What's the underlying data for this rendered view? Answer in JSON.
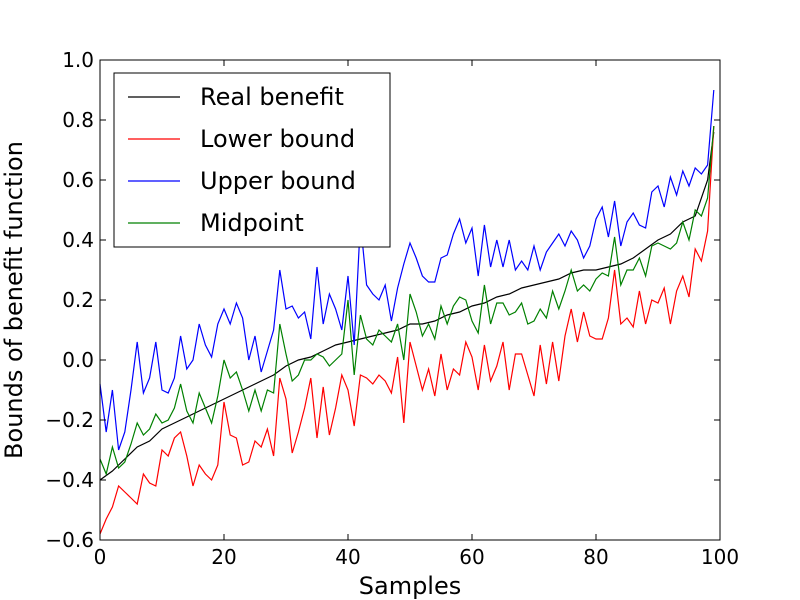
{
  "chart_data": {
    "type": "line",
    "title": "",
    "xlabel": "Samples",
    "ylabel": "Bounds of benefit function",
    "xlim": [
      0,
      100
    ],
    "ylim": [
      -0.6,
      1.0
    ],
    "xticks": [
      0,
      20,
      40,
      60,
      80,
      100
    ],
    "xtick_labels": [
      "0",
      "20",
      "40",
      "60",
      "80",
      "100"
    ],
    "yticks": [
      -0.6,
      -0.4,
      -0.2,
      0.0,
      0.2,
      0.4,
      0.6,
      0.8,
      1.0
    ],
    "ytick_labels": [
      "−0.6",
      "−0.4",
      "−0.2",
      "0.0",
      "0.2",
      "0.4",
      "0.6",
      "0.8",
      "1.0"
    ],
    "grid": false,
    "legend": "top-left",
    "series": [
      {
        "name": "Real benefit",
        "color": "#000000",
        "x": [
          0,
          2,
          4,
          6,
          8,
          10,
          12,
          14,
          16,
          18,
          20,
          22,
          24,
          26,
          28,
          30,
          32,
          34,
          36,
          38,
          40,
          42,
          44,
          46,
          48,
          50,
          52,
          54,
          56,
          58,
          60,
          62,
          64,
          66,
          68,
          70,
          72,
          74,
          76,
          78,
          80,
          82,
          84,
          86,
          88,
          90,
          92,
          94,
          96,
          98,
          99
        ],
        "y": [
          -0.4,
          -0.37,
          -0.33,
          -0.29,
          -0.27,
          -0.23,
          -0.21,
          -0.19,
          -0.17,
          -0.15,
          -0.13,
          -0.11,
          -0.09,
          -0.07,
          -0.05,
          -0.02,
          -0.0,
          0.01,
          0.03,
          0.05,
          0.06,
          0.07,
          0.08,
          0.09,
          0.1,
          0.12,
          0.12,
          0.13,
          0.15,
          0.16,
          0.18,
          0.19,
          0.21,
          0.22,
          0.24,
          0.25,
          0.26,
          0.27,
          0.29,
          0.3,
          0.3,
          0.31,
          0.32,
          0.34,
          0.37,
          0.4,
          0.42,
          0.46,
          0.48,
          0.6,
          0.76
        ]
      },
      {
        "name": "Lower bound",
        "color": "#ff0000",
        "x": [
          0,
          1,
          2,
          3,
          4,
          5,
          6,
          7,
          8,
          9,
          10,
          11,
          12,
          13,
          14,
          15,
          16,
          17,
          18,
          19,
          20,
          21,
          22,
          23,
          24,
          25,
          26,
          27,
          28,
          29,
          30,
          31,
          32,
          33,
          34,
          35,
          36,
          37,
          38,
          39,
          40,
          41,
          42,
          43,
          44,
          45,
          46,
          47,
          48,
          49,
          50,
          51,
          52,
          53,
          54,
          55,
          56,
          57,
          58,
          59,
          60,
          61,
          62,
          63,
          64,
          65,
          66,
          67,
          68,
          69,
          70,
          71,
          72,
          73,
          74,
          75,
          76,
          77,
          78,
          79,
          80,
          81,
          82,
          83,
          84,
          85,
          86,
          87,
          88,
          89,
          90,
          91,
          92,
          93,
          94,
          95,
          96,
          97,
          98,
          99
        ],
        "y": [
          -0.58,
          -0.53,
          -0.49,
          -0.42,
          -0.44,
          -0.46,
          -0.48,
          -0.38,
          -0.41,
          -0.42,
          -0.3,
          -0.32,
          -0.26,
          -0.24,
          -0.32,
          -0.42,
          -0.35,
          -0.38,
          -0.4,
          -0.35,
          -0.14,
          -0.25,
          -0.26,
          -0.35,
          -0.34,
          -0.27,
          -0.29,
          -0.23,
          -0.32,
          -0.06,
          -0.13,
          -0.31,
          -0.24,
          -0.16,
          -0.06,
          -0.26,
          -0.09,
          -0.25,
          -0.16,
          -0.05,
          -0.1,
          -0.22,
          -0.05,
          -0.06,
          -0.08,
          -0.05,
          -0.07,
          -0.11,
          0.01,
          -0.21,
          0.06,
          -0.02,
          -0.1,
          -0.03,
          -0.12,
          0.02,
          -0.1,
          -0.03,
          -0.05,
          0.06,
          0.01,
          -0.1,
          0.05,
          -0.07,
          -0.02,
          0.06,
          -0.1,
          0.02,
          0.02,
          -0.05,
          -0.12,
          0.05,
          -0.08,
          0.06,
          -0.07,
          0.08,
          0.17,
          0.06,
          0.16,
          0.08,
          0.07,
          0.07,
          0.14,
          0.3,
          0.12,
          0.14,
          0.11,
          0.23,
          0.12,
          0.2,
          0.19,
          0.24,
          0.12,
          0.23,
          0.28,
          0.21,
          0.37,
          0.33,
          0.43,
          0.78
        ]
      },
      {
        "name": "Upper bound",
        "color": "#0000ff",
        "x": [
          0,
          1,
          2,
          3,
          4,
          5,
          6,
          7,
          8,
          9,
          10,
          11,
          12,
          13,
          14,
          15,
          16,
          17,
          18,
          19,
          20,
          21,
          22,
          23,
          24,
          25,
          26,
          27,
          28,
          29,
          30,
          31,
          32,
          33,
          34,
          35,
          36,
          37,
          38,
          39,
          40,
          41,
          42,
          43,
          44,
          45,
          46,
          47,
          48,
          49,
          50,
          51,
          52,
          53,
          54,
          55,
          56,
          57,
          58,
          59,
          60,
          61,
          62,
          63,
          64,
          65,
          66,
          67,
          68,
          69,
          70,
          71,
          72,
          73,
          74,
          75,
          76,
          77,
          78,
          79,
          80,
          81,
          82,
          83,
          84,
          85,
          86,
          87,
          88,
          89,
          90,
          91,
          92,
          93,
          94,
          95,
          96,
          97,
          98,
          99
        ],
        "y": [
          -0.08,
          -0.24,
          -0.1,
          -0.3,
          -0.24,
          -0.1,
          0.06,
          -0.11,
          -0.06,
          0.06,
          -0.1,
          -0.11,
          -0.06,
          0.08,
          -0.03,
          0.0,
          0.12,
          0.05,
          0.01,
          0.12,
          0.17,
          0.12,
          0.19,
          0.14,
          0.0,
          0.08,
          -0.04,
          0.03,
          0.1,
          0.3,
          0.17,
          0.18,
          0.14,
          0.16,
          0.07,
          0.31,
          0.12,
          0.22,
          0.17,
          0.1,
          0.28,
          0.05,
          0.46,
          0.25,
          0.22,
          0.2,
          0.25,
          0.13,
          0.24,
          0.32,
          0.39,
          0.34,
          0.28,
          0.26,
          0.26,
          0.34,
          0.35,
          0.42,
          0.47,
          0.39,
          0.44,
          0.28,
          0.45,
          0.31,
          0.4,
          0.31,
          0.4,
          0.3,
          0.33,
          0.3,
          0.38,
          0.3,
          0.36,
          0.39,
          0.42,
          0.38,
          0.43,
          0.4,
          0.34,
          0.38,
          0.47,
          0.51,
          0.41,
          0.53,
          0.38,
          0.46,
          0.49,
          0.45,
          0.44,
          0.56,
          0.58,
          0.51,
          0.61,
          0.55,
          0.63,
          0.58,
          0.64,
          0.62,
          0.65,
          0.9
        ]
      },
      {
        "name": "Midpoint",
        "color": "#008000",
        "x": [
          0,
          1,
          2,
          3,
          4,
          5,
          6,
          7,
          8,
          9,
          10,
          11,
          12,
          13,
          14,
          15,
          16,
          17,
          18,
          19,
          20,
          21,
          22,
          23,
          24,
          25,
          26,
          27,
          28,
          29,
          30,
          31,
          32,
          33,
          34,
          35,
          36,
          37,
          38,
          39,
          40,
          41,
          42,
          43,
          44,
          45,
          46,
          47,
          48,
          49,
          50,
          51,
          52,
          53,
          54,
          55,
          56,
          57,
          58,
          59,
          60,
          61,
          62,
          63,
          64,
          65,
          66,
          67,
          68,
          69,
          70,
          71,
          72,
          73,
          74,
          75,
          76,
          77,
          78,
          79,
          80,
          81,
          82,
          83,
          84,
          85,
          86,
          87,
          88,
          89,
          90,
          91,
          92,
          93,
          94,
          95,
          96,
          97,
          98,
          99
        ],
        "y": [
          -0.33,
          -0.38,
          -0.29,
          -0.36,
          -0.34,
          -0.28,
          -0.21,
          -0.25,
          -0.23,
          -0.18,
          -0.21,
          -0.2,
          -0.16,
          -0.08,
          -0.17,
          -0.21,
          -0.11,
          -0.16,
          -0.21,
          -0.12,
          0.0,
          -0.06,
          -0.04,
          -0.1,
          -0.17,
          -0.1,
          -0.17,
          -0.1,
          -0.11,
          0.12,
          0.02,
          -0.07,
          -0.05,
          0.0,
          0.0,
          0.02,
          0.01,
          -0.02,
          0.0,
          0.02,
          0.2,
          -0.05,
          0.15,
          0.07,
          0.05,
          0.1,
          0.08,
          0.06,
          0.12,
          0.0,
          0.22,
          0.16,
          0.08,
          0.12,
          0.07,
          0.18,
          0.12,
          0.18,
          0.21,
          0.2,
          0.13,
          0.09,
          0.25,
          0.12,
          0.19,
          0.19,
          0.15,
          0.16,
          0.19,
          0.12,
          0.13,
          0.17,
          0.14,
          0.23,
          0.17,
          0.23,
          0.3,
          0.23,
          0.25,
          0.23,
          0.27,
          0.29,
          0.28,
          0.41,
          0.25,
          0.3,
          0.3,
          0.34,
          0.28,
          0.38,
          0.39,
          0.38,
          0.37,
          0.39,
          0.46,
          0.4,
          0.5,
          0.48,
          0.54,
          0.78
        ]
      }
    ]
  }
}
